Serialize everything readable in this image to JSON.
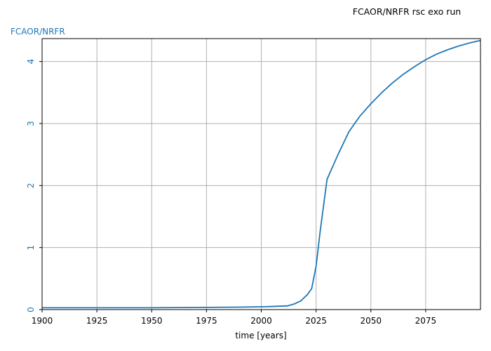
{
  "chart_data": {
    "type": "line",
    "title": "FCAOR/NRFR rsc exo run",
    "xlabel": "time [years]",
    "ylabel": "FCAOR/NRFR",
    "xlim": [
      1900,
      2100
    ],
    "ylim": [
      0,
      4.37
    ],
    "x_ticks": [
      1900,
      1925,
      1950,
      1975,
      2000,
      2025,
      2050,
      2075
    ],
    "y_ticks": [
      0,
      1,
      2,
      3,
      4
    ],
    "x_tick_labels": [
      "1900",
      "1925",
      "1950",
      "1975",
      "2000",
      "2025",
      "2050",
      "2075"
    ],
    "y_tick_labels": [
      "0",
      "1",
      "2",
      "3",
      "4"
    ],
    "grid": true,
    "colors": {
      "series": "#1f77b4",
      "grid": "#b0b0b0",
      "axis": "#000000",
      "ylabel": "#1f77b4"
    },
    "series": [
      {
        "x": [
          1900,
          1950,
          1975,
          1990,
          2000,
          2005,
          2012,
          2015,
          2018,
          2021,
          2023,
          2025,
          2027,
          2030,
          2035,
          2040,
          2045,
          2050,
          2055,
          2060,
          2065,
          2070,
          2075,
          2080,
          2085,
          2090,
          2095,
          2100
        ],
        "values": [
          0.03,
          0.03,
          0.035,
          0.04,
          0.045,
          0.05,
          0.06,
          0.09,
          0.14,
          0.24,
          0.34,
          0.7,
          1.3,
          2.1,
          2.5,
          2.87,
          3.12,
          3.32,
          3.5,
          3.66,
          3.8,
          3.92,
          4.03,
          4.12,
          4.19,
          4.25,
          4.3,
          4.34
        ]
      }
    ]
  }
}
